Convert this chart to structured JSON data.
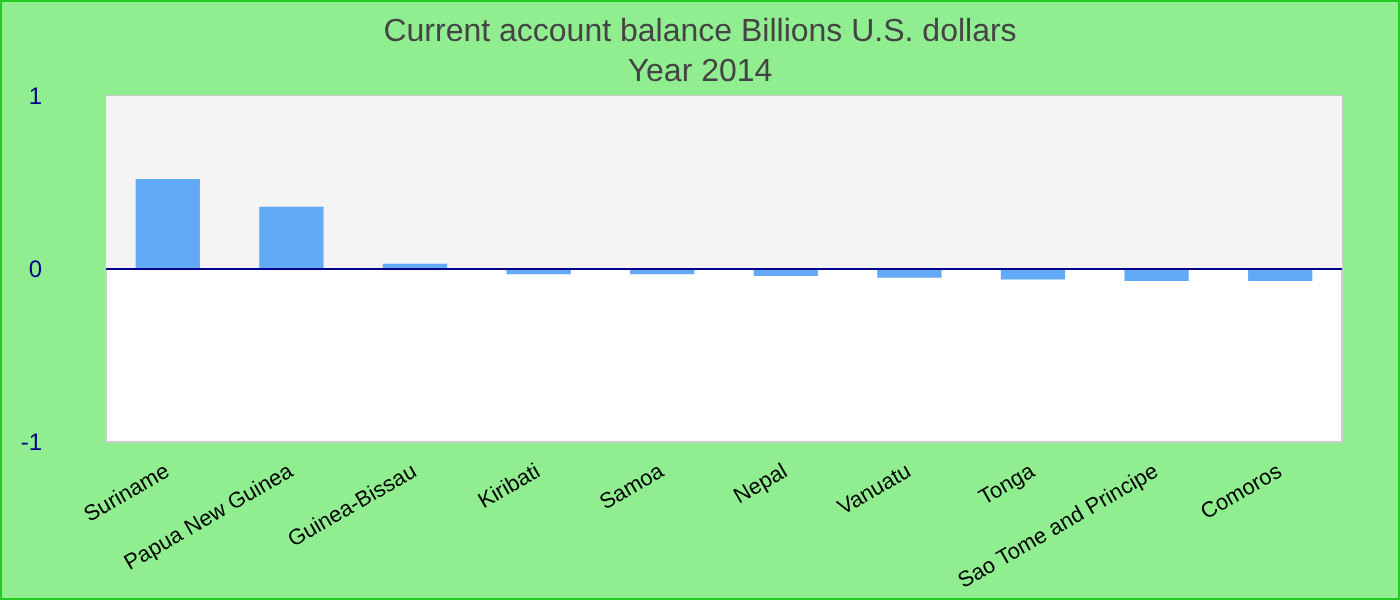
{
  "chart_data": {
    "type": "bar",
    "title": "Current account balance Billions U.S. dollars",
    "subtitle": "Year 2014",
    "categories": [
      "Suriname",
      "Papua New Guinea",
      "Guinea-Bissau",
      "Kiribati",
      "Samoa",
      "Nepal",
      "Vanuatu",
      "Tonga",
      "Sao Tome and Principe",
      "Comoros"
    ],
    "values": [
      0.52,
      0.36,
      0.03,
      -0.03,
      -0.03,
      -0.04,
      -0.05,
      -0.06,
      -0.07,
      -0.07
    ],
    "color": "#62a9f6",
    "ylim": [
      -1,
      1
    ],
    "yticks": [
      -1,
      0,
      1
    ],
    "grid": false,
    "bands": [
      {
        "axis": "y",
        "from": 0,
        "to": 1,
        "color": "#f4f4f4"
      }
    ],
    "ref_lines": [
      {
        "axis": "y",
        "value": 0,
        "color": "#00008b"
      }
    ]
  }
}
